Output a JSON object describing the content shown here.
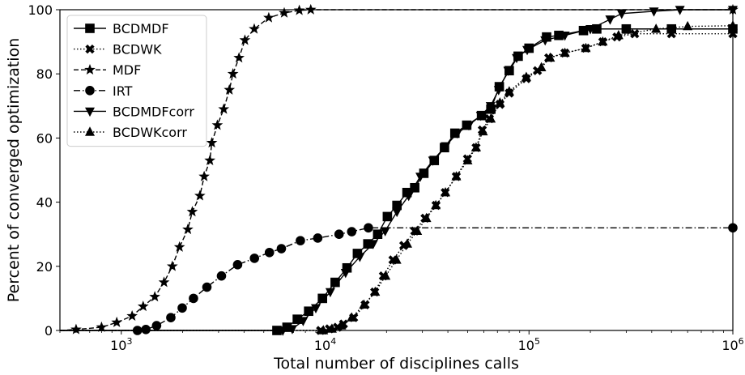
{
  "chart_data": {
    "type": "line",
    "xscale": "log",
    "xlim": [
      500,
      1000000
    ],
    "ylim": [
      0,
      100
    ],
    "xlabel": "Total number of disciplines calls",
    "ylabel": "Percent of converged optimization",
    "legend_position": "top-left",
    "grid": false,
    "xticks": [
      {
        "value": 1000,
        "base": "10",
        "exp": "3"
      },
      {
        "value": 10000,
        "base": "10",
        "exp": "4"
      },
      {
        "value": 100000,
        "base": "10",
        "exp": "5"
      },
      {
        "value": 1000000,
        "base": "10",
        "exp": "6"
      }
    ],
    "yticks": [
      {
        "value": 0,
        "label": "0"
      },
      {
        "value": 20,
        "label": "20"
      },
      {
        "value": 40,
        "label": "40"
      },
      {
        "value": 60,
        "label": "60"
      },
      {
        "value": 80,
        "label": "80"
      },
      {
        "value": 100,
        "label": "100"
      }
    ],
    "series": [
      {
        "name": "BCDMDF",
        "marker": "square",
        "line": "solid",
        "points": [
          [
            500,
            0
          ],
          [
            5800,
            0
          ],
          [
            6500,
            1
          ],
          [
            7300,
            3.5
          ],
          [
            8300,
            6
          ],
          [
            9700,
            10
          ],
          [
            11200,
            15
          ],
          [
            12800,
            19.5
          ],
          [
            14400,
            24
          ],
          [
            16200,
            27
          ],
          [
            18100,
            30
          ],
          [
            20200,
            35.5
          ],
          [
            22500,
            39
          ],
          [
            25200,
            43
          ],
          [
            27500,
            44.5
          ],
          [
            30500,
            49
          ],
          [
            34300,
            53
          ],
          [
            38500,
            57
          ],
          [
            43300,
            61.5
          ],
          [
            49500,
            64
          ],
          [
            58500,
            67
          ],
          [
            65000,
            69
          ],
          [
            71500,
            76
          ],
          [
            80000,
            81
          ],
          [
            88500,
            85.5
          ],
          [
            100000,
            88
          ],
          [
            122000,
            91.5
          ],
          [
            140000,
            92
          ],
          [
            185000,
            93.5
          ],
          [
            215000,
            94
          ],
          [
            300000,
            94
          ],
          [
            500000,
            94
          ],
          [
            1000000,
            94
          ]
        ]
      },
      {
        "name": "BCDWK",
        "marker": "x",
        "line": "dotted",
        "points": [
          [
            500,
            0
          ],
          [
            9500,
            0
          ],
          [
            10500,
            0.5
          ],
          [
            11500,
            1
          ],
          [
            12300,
            2
          ],
          [
            13800,
            4
          ],
          [
            15700,
            8
          ],
          [
            17500,
            12
          ],
          [
            19300,
            17
          ],
          [
            21500,
            22
          ],
          [
            24300,
            26.5
          ],
          [
            27500,
            31
          ],
          [
            30900,
            35
          ],
          [
            35000,
            39
          ],
          [
            38800,
            43
          ],
          [
            44000,
            48
          ],
          [
            49900,
            53.5
          ],
          [
            55000,
            57
          ],
          [
            59000,
            62.5
          ],
          [
            64000,
            66
          ],
          [
            72000,
            70.5
          ],
          [
            80000,
            74
          ],
          [
            97000,
            78.5
          ],
          [
            110000,
            81
          ],
          [
            125000,
            85
          ],
          [
            150000,
            86.5
          ],
          [
            190000,
            88
          ],
          [
            230000,
            90
          ],
          [
            270000,
            91.5
          ],
          [
            330000,
            92.5
          ],
          [
            500000,
            92.5
          ],
          [
            1000000,
            92.5
          ]
        ]
      },
      {
        "name": "MDF",
        "marker": "star",
        "line": "dashed",
        "points": [
          [
            500,
            0
          ],
          [
            600,
            0.3
          ],
          [
            800,
            1
          ],
          [
            950,
            2.5
          ],
          [
            1130,
            4.5
          ],
          [
            1280,
            7.5
          ],
          [
            1460,
            10.5
          ],
          [
            1620,
            15
          ],
          [
            1780,
            20
          ],
          [
            1930,
            26
          ],
          [
            2120,
            31.5
          ],
          [
            2230,
            37
          ],
          [
            2430,
            42
          ],
          [
            2550,
            48
          ],
          [
            2720,
            53
          ],
          [
            2780,
            58.5
          ],
          [
            2960,
            64
          ],
          [
            3180,
            69
          ],
          [
            3390,
            75
          ],
          [
            3530,
            80
          ],
          [
            3780,
            85
          ],
          [
            4040,
            90.5
          ],
          [
            4490,
            94
          ],
          [
            5290,
            97.5
          ],
          [
            6300,
            99
          ],
          [
            7470,
            99.8
          ],
          [
            8500,
            100
          ],
          [
            1000000,
            100
          ]
        ]
      },
      {
        "name": "IRT",
        "marker": "circle",
        "line": "dashdot",
        "points": [
          [
            500,
            0
          ],
          [
            1200,
            0
          ],
          [
            1320,
            0.3
          ],
          [
            1490,
            1.5
          ],
          [
            1750,
            4
          ],
          [
            1990,
            7
          ],
          [
            2260,
            10
          ],
          [
            2630,
            13.5
          ],
          [
            3100,
            17
          ],
          [
            3720,
            20.5
          ],
          [
            4500,
            22.5
          ],
          [
            5330,
            24.3
          ],
          [
            6100,
            25.5
          ],
          [
            7560,
            28
          ],
          [
            9200,
            28.8
          ],
          [
            11700,
            30
          ],
          [
            13500,
            30.8
          ],
          [
            16300,
            32
          ],
          [
            1000000,
            32
          ]
        ]
      },
      {
        "name": "BCDMDFcorr",
        "marker": "triangle-down",
        "line": "solid",
        "points": [
          [
            500,
            0
          ],
          [
            6200,
            0
          ],
          [
            6900,
            0.5
          ],
          [
            7800,
            3
          ],
          [
            9000,
            7
          ],
          [
            10600,
            12
          ],
          [
            12600,
            18
          ],
          [
            14800,
            23
          ],
          [
            17200,
            27
          ],
          [
            19700,
            31
          ],
          [
            22500,
            37
          ],
          [
            25700,
            42
          ],
          [
            29300,
            48
          ],
          [
            33800,
            53
          ],
          [
            39000,
            57.5
          ],
          [
            44500,
            61.5
          ],
          [
            50700,
            64
          ],
          [
            58000,
            67
          ],
          [
            64800,
            70
          ],
          [
            71000,
            75
          ],
          [
            79000,
            81
          ],
          [
            87000,
            85
          ],
          [
            98000,
            87.5
          ],
          [
            120000,
            90.5
          ],
          [
            150000,
            92
          ],
          [
            200000,
            94
          ],
          [
            250000,
            97
          ],
          [
            285000,
            98.8
          ],
          [
            410000,
            99.5
          ],
          [
            550000,
            100
          ],
          [
            1000000,
            100
          ]
        ]
      },
      {
        "name": "BCDWKcorr",
        "marker": "triangle-up",
        "line": "dotted",
        "points": [
          [
            500,
            0
          ],
          [
            9800,
            0
          ],
          [
            10800,
            0.5
          ],
          [
            12000,
            1.5
          ],
          [
            13500,
            4
          ],
          [
            15500,
            8
          ],
          [
            17600,
            12
          ],
          [
            19800,
            17
          ],
          [
            22400,
            22
          ],
          [
            25300,
            27
          ],
          [
            28300,
            31
          ],
          [
            31400,
            35
          ],
          [
            34900,
            39
          ],
          [
            38900,
            43
          ],
          [
            44000,
            48
          ],
          [
            50000,
            53
          ],
          [
            55000,
            57
          ],
          [
            59500,
            62
          ],
          [
            65000,
            66
          ],
          [
            72000,
            71
          ],
          [
            80000,
            74.5
          ],
          [
            97000,
            79
          ],
          [
            115000,
            82
          ],
          [
            127000,
            85
          ],
          [
            150000,
            86.5
          ],
          [
            190000,
            88
          ],
          [
            230000,
            90
          ],
          [
            275000,
            92
          ],
          [
            420000,
            94
          ],
          [
            600000,
            94.8
          ],
          [
            1000000,
            95
          ]
        ]
      }
    ]
  }
}
